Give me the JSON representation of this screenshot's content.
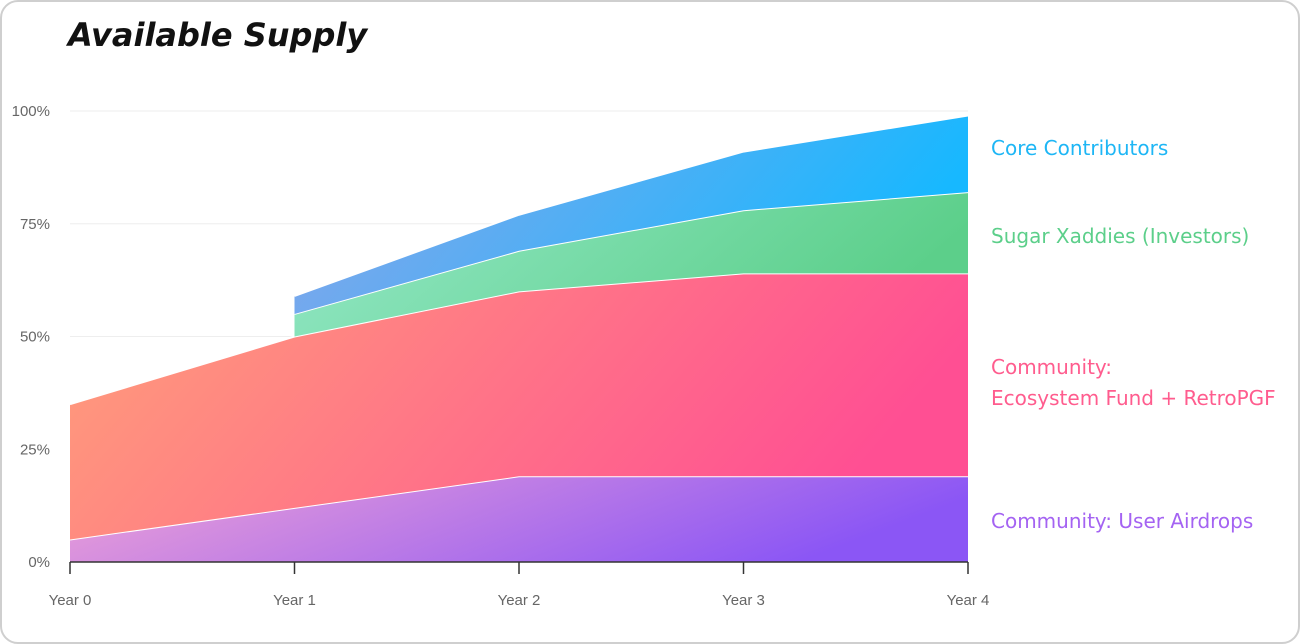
{
  "title": "Available Supply",
  "chart_data": {
    "type": "area",
    "stacked": true,
    "title": "Available Supply",
    "categories": [
      "Year 0",
      "Year 1",
      "Year 2",
      "Year 3",
      "Year 4"
    ],
    "y_ticks": [
      "0%",
      "25%",
      "50%",
      "75%",
      "100%"
    ],
    "ylim": [
      0,
      100
    ],
    "grid": true,
    "legend_position": "right",
    "series": [
      {
        "name": "Community: User Airdrops",
        "values": [
          5,
          12,
          19,
          19,
          19
        ],
        "color_start": "#f0a3d6",
        "color_end": "#8b56f5",
        "label_color": "#a463f2"
      },
      {
        "name": "Community: Ecosystem Fund + RetroPGF",
        "values": [
          30,
          38,
          41,
          45,
          45
        ],
        "color_start": "#ff9f7a",
        "color_end": "#ff4f93",
        "label_color": "#ff5c8e"
      },
      {
        "name": "Sugar Xaddies (Investors)",
        "values": [
          null,
          5,
          9,
          14,
          18
        ],
        "color_start": "#95e8c8",
        "color_end": "#5ccf8a",
        "label_color": "#5ccf8a"
      },
      {
        "name": "Core Contributors",
        "values": [
          null,
          4,
          8,
          13,
          17
        ],
        "color_start": "#8fa4e8",
        "color_end": "#17b8ff",
        "label_color": "#1eb6f5"
      }
    ],
    "legend_lines": [
      [
        "Core Contributors"
      ],
      [
        "Sugar Xaddies (Investors)"
      ],
      [
        "Community:",
        "Ecosystem Fund + RetroPGF"
      ],
      [
        "Community: User Airdrops"
      ]
    ]
  }
}
